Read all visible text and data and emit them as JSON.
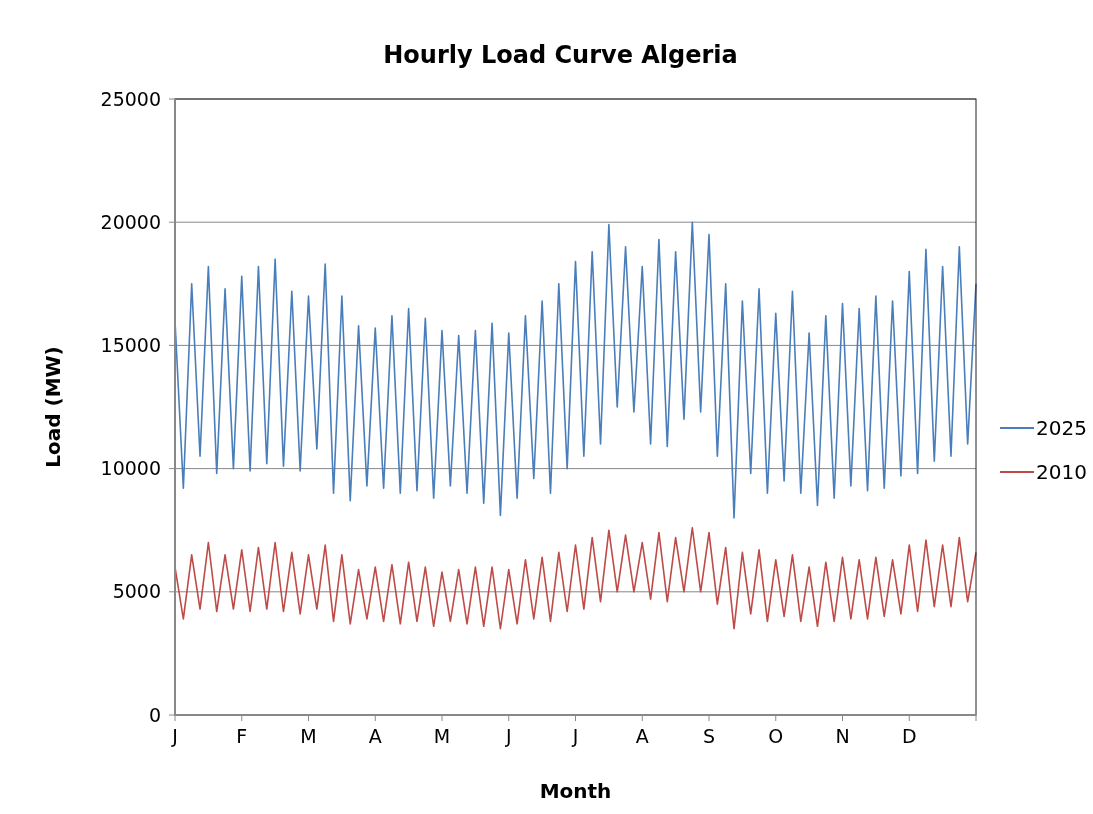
{
  "chart_data": {
    "type": "line",
    "title": "Hourly Load Curve Algeria",
    "xlabel": "Month",
    "ylabel": "Load (MW)",
    "categories": [
      "J",
      null,
      null,
      null,
      null,
      null,
      null,
      null,
      "F",
      null,
      null,
      null,
      null,
      null,
      null,
      null,
      "M",
      null,
      null,
      null,
      null,
      null,
      null,
      null,
      "A",
      null,
      null,
      null,
      null,
      null,
      null,
      null,
      "M",
      null,
      null,
      null,
      null,
      null,
      null,
      null,
      "J",
      null,
      null,
      null,
      null,
      null,
      null,
      null,
      "J",
      null,
      null,
      null,
      null,
      null,
      null,
      null,
      "A",
      null,
      null,
      null,
      null,
      null,
      null,
      null,
      "S",
      null,
      null,
      null,
      null,
      null,
      null,
      null,
      "O",
      null,
      null,
      null,
      null,
      null,
      null,
      null,
      "N",
      null,
      null,
      null,
      null,
      null,
      null,
      null,
      "D",
      null,
      null,
      null,
      null,
      null,
      null,
      null,
      null
    ],
    "series": [
      {
        "name": "2025",
        "color": "#4a7ebb",
        "values": [
          16000,
          9200,
          17500,
          10500,
          18200,
          9800,
          17300,
          10000,
          17800,
          9900,
          18200,
          10200,
          18500,
          10100,
          17200,
          9900,
          17000,
          10800,
          18300,
          9000,
          17000,
          8700,
          15800,
          9300,
          15700,
          9200,
          16200,
          9000,
          16500,
          9100,
          16100,
          8800,
          15600,
          9300,
          15400,
          9000,
          15600,
          8600,
          15900,
          8100,
          15500,
          8800,
          16200,
          9600,
          16800,
          9000,
          17500,
          10000,
          18400,
          10500,
          18800,
          11000,
          19900,
          12500,
          19000,
          12300,
          18200,
          11000,
          19300,
          10900,
          18800,
          12000,
          20000,
          12300,
          19500,
          10500,
          17500,
          8000,
          16800,
          9800,
          17300,
          9000,
          16300,
          9500,
          17200,
          9000,
          15500,
          8500,
          16200,
          8800,
          16700,
          9300,
          16500,
          9100,
          17000,
          9200,
          16800,
          9700,
          18000,
          9800,
          18900,
          10300,
          18200,
          10500,
          19000,
          11000,
          17500
        ]
      },
      {
        "name": "2010",
        "color": "#be4b48",
        "values": [
          6000,
          3900,
          6500,
          4300,
          7000,
          4200,
          6500,
          4300,
          6700,
          4200,
          6800,
          4300,
          7000,
          4200,
          6600,
          4100,
          6500,
          4300,
          6900,
          3800,
          6500,
          3700,
          5900,
          3900,
          6000,
          3800,
          6100,
          3700,
          6200,
          3800,
          6000,
          3600,
          5800,
          3800,
          5900,
          3700,
          6000,
          3600,
          6000,
          3500,
          5900,
          3700,
          6300,
          3900,
          6400,
          3800,
          6600,
          4200,
          6900,
          4300,
          7200,
          4600,
          7500,
          5000,
          7300,
          5000,
          7000,
          4700,
          7400,
          4600,
          7200,
          5000,
          7600,
          5000,
          7400,
          4500,
          6800,
          3500,
          6600,
          4100,
          6700,
          3800,
          6300,
          4000,
          6500,
          3800,
          6000,
          3600,
          6200,
          3800,
          6400,
          3900,
          6300,
          3900,
          6400,
          4000,
          6300,
          4100,
          6900,
          4200,
          7100,
          4400,
          6900,
          4400,
          7200,
          4600,
          6600
        ]
      }
    ],
    "ylim": [
      0,
      25000
    ],
    "yticks": [
      0,
      5000,
      10000,
      15000,
      20000,
      25000
    ],
    "grid": "y",
    "legend": "right",
    "marker": "none",
    "line_style": "solid"
  }
}
